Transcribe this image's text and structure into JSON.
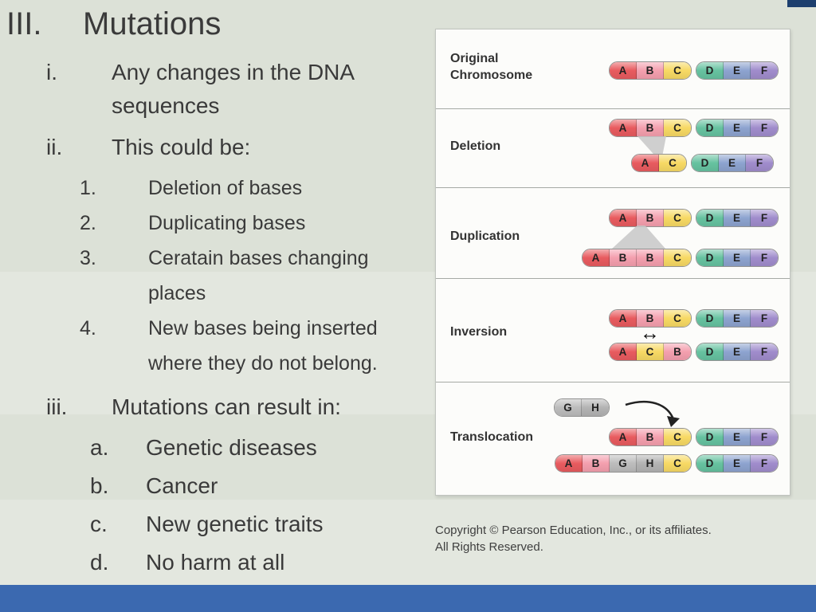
{
  "slide": {
    "title_marker": "III.",
    "title": "Mutations"
  },
  "outline": [
    {
      "level": 1,
      "marker": "i.",
      "text": "Any changes in the DNA sequences"
    },
    {
      "level": 1,
      "marker": "ii.",
      "text": "This could be:"
    },
    {
      "level": 2,
      "marker": "1.",
      "text": "Deletion of bases"
    },
    {
      "level": 2,
      "marker": "2.",
      "text": "Duplicating bases"
    },
    {
      "level": 2,
      "marker": "3.",
      "text": "Ceratain bases changing places"
    },
    {
      "level": 2,
      "marker": "4.",
      "text": "New bases being inserted where they do not belong."
    },
    {
      "level": 1,
      "marker": "iii.",
      "text": "Mutations can result in:"
    },
    {
      "level": 3,
      "marker": "a.",
      "text": "Genetic diseases"
    },
    {
      "level": 3,
      "marker": "b.",
      "text": "Cancer"
    },
    {
      "level": 3,
      "marker": "c.",
      "text": "New genetic traits"
    },
    {
      "level": 3,
      "marker": "d.",
      "text": "No harm at all"
    }
  ],
  "diagram": {
    "sections": [
      {
        "id": "original",
        "label": "Original Chromosome",
        "rows": [
          [
            [
              "A",
              "B",
              "C"
            ],
            [
              "D",
              "E",
              "F"
            ]
          ]
        ]
      },
      {
        "id": "deletion",
        "label": "Deletion",
        "rows": [
          [
            [
              "A",
              "B",
              "C"
            ],
            [
              "D",
              "E",
              "F"
            ]
          ],
          [
            [
              "A",
              "C"
            ],
            [
              "D",
              "E",
              "F"
            ]
          ]
        ]
      },
      {
        "id": "duplication",
        "label": "Duplication",
        "rows": [
          [
            [
              "A",
              "B",
              "C"
            ],
            [
              "D",
              "E",
              "F"
            ]
          ],
          [
            [
              "A",
              "B",
              "B",
              "C"
            ],
            [
              "D",
              "E",
              "F"
            ]
          ]
        ]
      },
      {
        "id": "inversion",
        "label": "Inversion",
        "rows": [
          [
            [
              "A",
              "B",
              "C"
            ],
            [
              "D",
              "E",
              "F"
            ]
          ],
          [
            [
              "A",
              "C",
              "B"
            ],
            [
              "D",
              "E",
              "F"
            ]
          ]
        ]
      },
      {
        "id": "translocation",
        "label": "Translocation",
        "insert_arms": [
          [
            "G",
            "H"
          ]
        ],
        "rows": [
          [
            [
              "A",
              "B",
              "C"
            ],
            [
              "D",
              "E",
              "F"
            ]
          ],
          [
            [
              "A",
              "B",
              "G",
              "H",
              "C"
            ],
            [
              "D",
              "E",
              "F"
            ]
          ]
        ]
      }
    ],
    "inversion_arrow": "↔",
    "segment_colors": {
      "A": "#e85b5f",
      "B": "#f49fae",
      "C": "#f7d964",
      "D": "#66c2a0",
      "E": "#8da3cf",
      "F": "#a08ccc",
      "G": "#bcbcbc",
      "H": "#b3b3b3"
    },
    "copyright_line1": "Copyright © Pearson Education, Inc., or its affiliates.",
    "copyright_line2": "All Rights Reserved."
  },
  "theme": {
    "band_a": "#dce1d7",
    "band_b": "#e3e7df",
    "accent": "#3b69b0",
    "accent_dark": "#1d3f6e",
    "text_color": "#3a3a3a"
  }
}
